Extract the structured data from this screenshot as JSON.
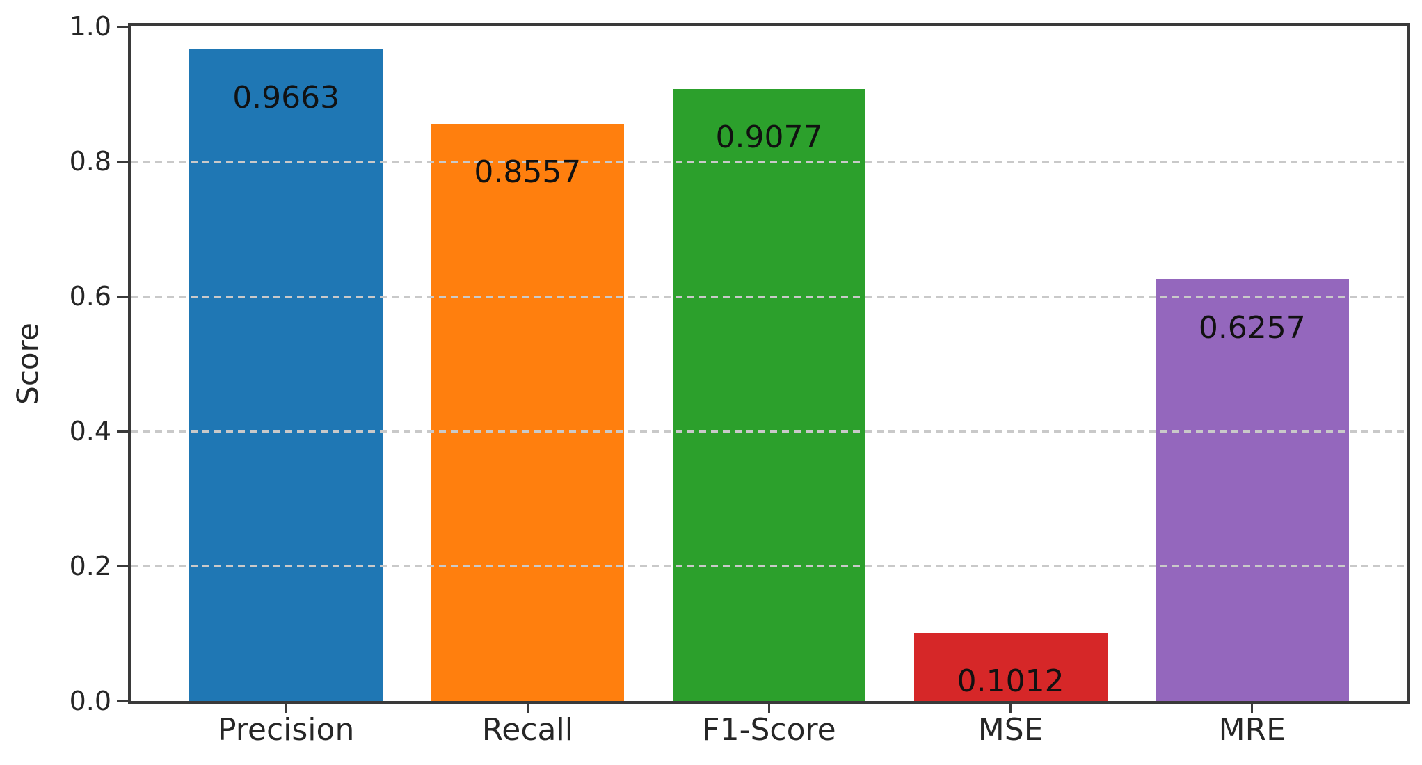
{
  "figure": {
    "background": "#ffffff",
    "spine_color": "#3a3a3a",
    "grid_color": "#c9c9c9",
    "tick_color": "#3a3a3a",
    "axis_text_color": "#262626",
    "bar_label_color": "#111111"
  },
  "chart_data": {
    "type": "bar",
    "title": "",
    "categories": [
      "Precision",
      "Recall",
      "F1-Score",
      "MSE",
      "MRE"
    ],
    "values": [
      0.9663,
      0.8557,
      0.9077,
      0.1012,
      0.6257
    ],
    "value_labels": [
      "0.9663",
      "0.8557",
      "0.9077",
      "0.1012",
      "0.6257"
    ],
    "bar_colors": [
      "#1f77b4",
      "#ff7f0e",
      "#2ca02c",
      "#d62728",
      "#9467bd"
    ],
    "xlabel": "",
    "ylabel": "Score",
    "ylim": [
      0.0,
      1.0
    ],
    "yticks": [
      0.0,
      0.2,
      0.4,
      0.6,
      0.8,
      1.0
    ],
    "ytick_labels": [
      "0.0",
      "0.2",
      "0.4",
      "0.6",
      "0.8",
      "1.0"
    ],
    "grid": {
      "axis": "y",
      "style": "dashed",
      "drawn_over_bars": true
    },
    "legend": "none",
    "bar_value_label_position": "inside-top"
  }
}
